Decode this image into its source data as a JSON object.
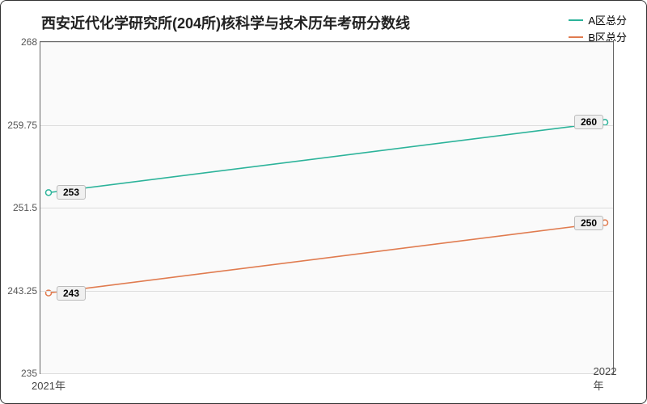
{
  "chart": {
    "type": "line",
    "title": "西安近代化学研究所(204所)核科学与技术历年考研分数线",
    "title_fontsize": 18,
    "background_color": "#fafafa",
    "border_color": "#666666",
    "grid_color": "#dddddd",
    "x": {
      "categories": [
        "2021年",
        "2022年"
      ]
    },
    "y": {
      "min": 235,
      "max": 268,
      "ticks": [
        235,
        243.25,
        251.5,
        259.75,
        268
      ]
    },
    "series": [
      {
        "name": "A区总分",
        "color": "#2cb39a",
        "values": [
          253,
          260
        ],
        "line_width": 1.6
      },
      {
        "name": "B区总分",
        "color": "#e07b4f",
        "values": [
          243,
          250
        ],
        "line_width": 1.6
      }
    ],
    "marker_radius": 3.5,
    "label_bg": "#f0f0f0",
    "label_border": "#bbbbbb",
    "label_fontsize": 12
  }
}
